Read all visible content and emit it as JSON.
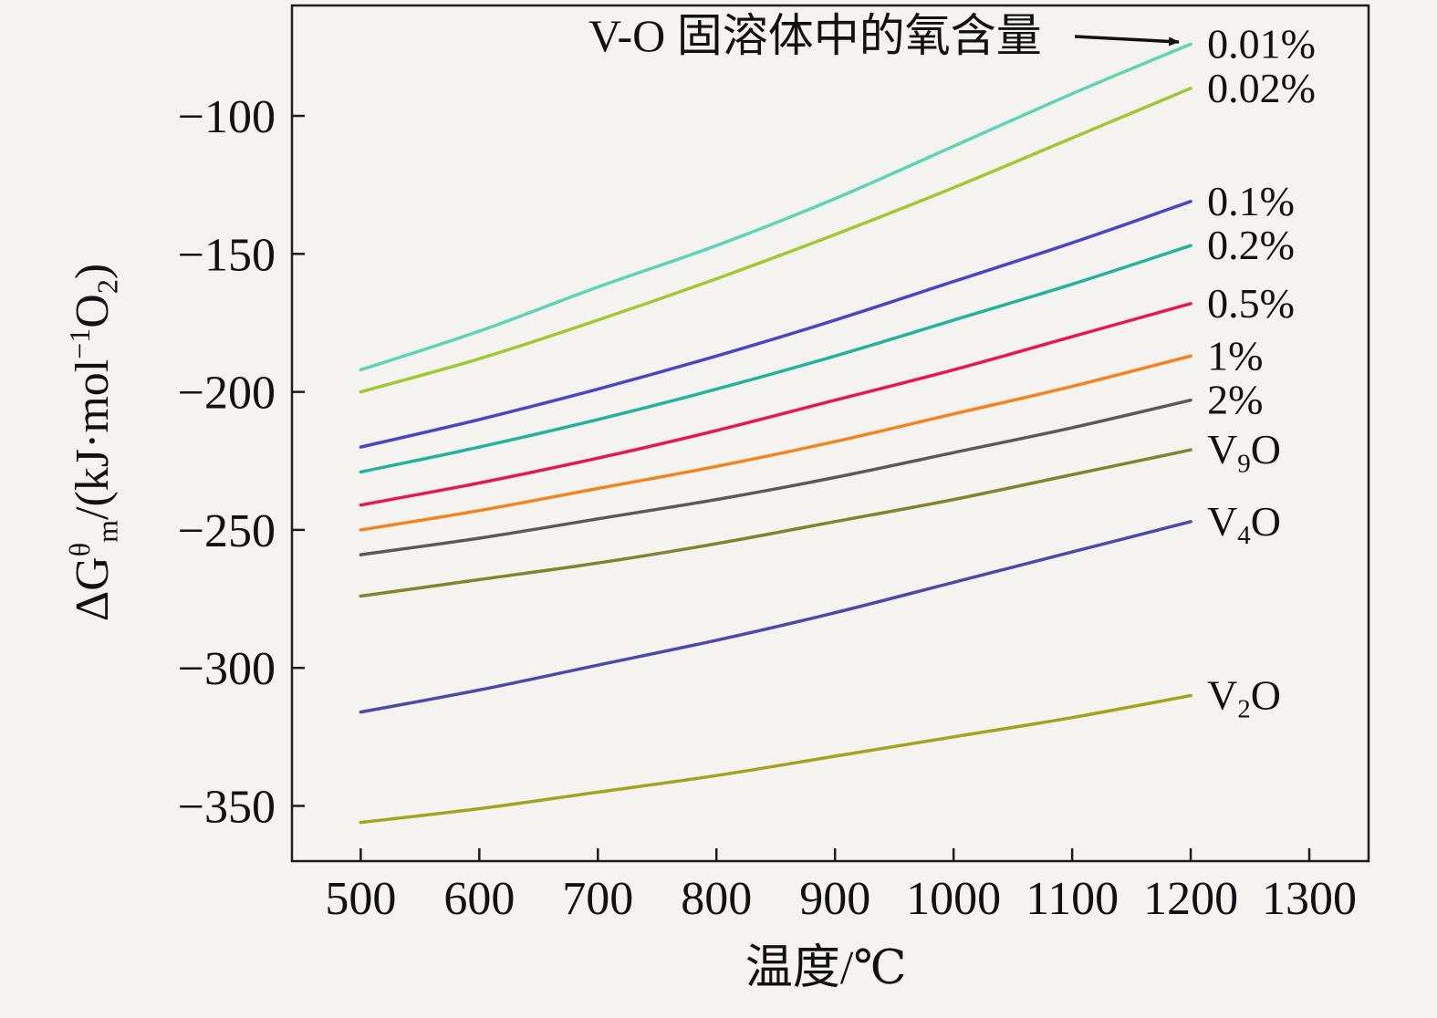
{
  "plot": {
    "background": "#f4f3f0",
    "border_color": "#1c1c1c",
    "text_color": "#111111"
  },
  "chart_data": {
    "type": "line",
    "annotation": {
      "text": "V-O 固溶体中的氧含量",
      "arrow_points_to": "0.01%"
    },
    "xlabel": "温度/℃",
    "ylabel": "ΔG^{θ}_{m}/(kJ·mol^{−1}O_{2})",
    "xlim": [
      442,
      1350
    ],
    "ylim": [
      -370,
      -60
    ],
    "x_ticks": [
      500,
      600,
      700,
      800,
      900,
      1000,
      1100,
      1200,
      1300
    ],
    "y_ticks": [
      -100,
      -150,
      -200,
      -250,
      -300,
      -350
    ],
    "grid": false,
    "legend_position": "inline-right",
    "x": [
      500,
      600,
      700,
      800,
      900,
      1000,
      1100,
      1200
    ],
    "series": [
      {
        "name": "0.01%",
        "label": "0.01%",
        "color": "#5ed3b6",
        "values": [
          -192,
          -178,
          -162,
          -147,
          -130,
          -111,
          -92,
          -74
        ]
      },
      {
        "name": "0.02%",
        "label": "0.02%",
        "color": "#9fc832",
        "values": [
          -200,
          -188,
          -174,
          -159,
          -143,
          -126,
          -108,
          -90
        ]
      },
      {
        "name": "0.1%",
        "label": "0.1%",
        "color": "#4846c4",
        "values": [
          -220,
          -210,
          -199,
          -187,
          -174,
          -160,
          -146,
          -131
        ]
      },
      {
        "name": "0.2%",
        "label": "0.2%",
        "color": "#23b29c",
        "values": [
          -229,
          -220,
          -210,
          -199,
          -187,
          -174,
          -161,
          -147
        ]
      },
      {
        "name": "0.5%",
        "label": "0.5%",
        "color": "#e8184f",
        "values": [
          -241,
          -233,
          -224,
          -214,
          -203,
          -192,
          -180,
          -168
        ]
      },
      {
        "name": "1%",
        "label": "1%",
        "color": "#f5821f",
        "values": [
          -250,
          -243,
          -235,
          -227,
          -218,
          -208,
          -198,
          -187
        ]
      },
      {
        "name": "2%",
        "label": "2%",
        "color": "#595959",
        "values": [
          -259,
          -253,
          -246,
          -239,
          -231,
          -222,
          -213,
          -203
        ]
      },
      {
        "name": "V9O",
        "label": "V_{9}O",
        "color": "#83832f",
        "values": [
          -274,
          -268,
          -262,
          -255,
          -247,
          -239,
          -230,
          -221
        ]
      },
      {
        "name": "V4O",
        "label": "V_{4}O",
        "color": "#4a4aa8",
        "values": [
          -316,
          -308,
          -299,
          -290,
          -280,
          -269,
          -258,
          -247
        ]
      },
      {
        "name": "V2O",
        "label": "V_{2}O",
        "color": "#a3a31d",
        "values": [
          -356,
          -351,
          -345,
          -339,
          -332,
          -325,
          -318,
          -310
        ]
      }
    ]
  }
}
